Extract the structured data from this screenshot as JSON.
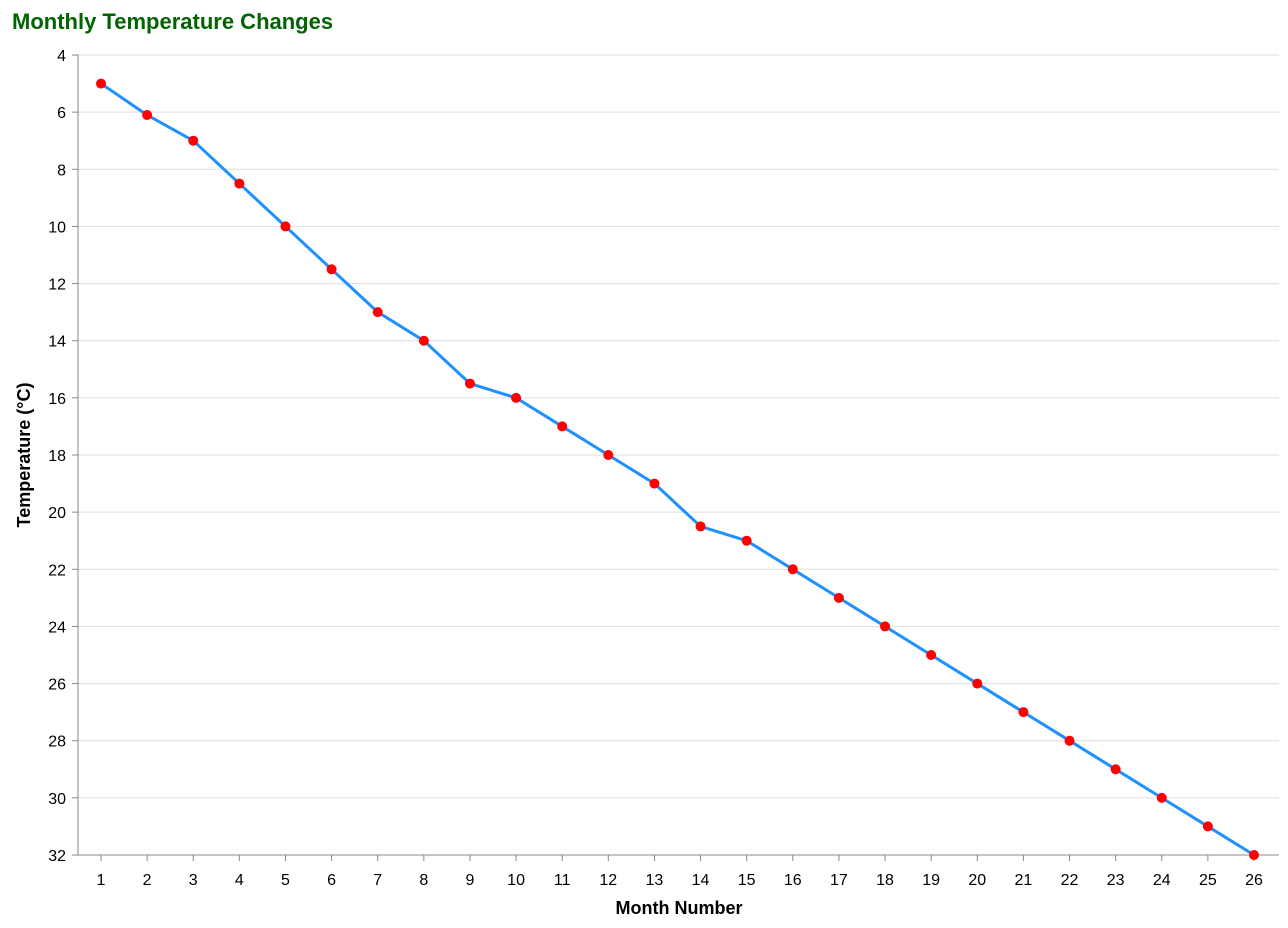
{
  "chart_data": {
    "type": "line",
    "title": "Monthly Temperature Changes",
    "xlabel": "Month Number",
    "ylabel": "Temperature (°C)",
    "x": [
      1,
      2,
      3,
      4,
      5,
      6,
      7,
      8,
      9,
      10,
      11,
      12,
      13,
      14,
      15,
      16,
      17,
      18,
      19,
      20,
      21,
      22,
      23,
      24,
      25,
      26
    ],
    "series": [
      {
        "values": [
          5,
          6.1,
          7,
          8.5,
          10,
          11.5,
          13,
          14,
          15.5,
          16,
          17,
          18,
          19,
          20.5,
          21,
          22,
          23,
          24,
          25,
          26,
          27,
          28,
          29,
          30,
          31,
          32
        ]
      }
    ],
    "xlim": [
      1,
      26
    ],
    "ylim": [
      4,
      32
    ],
    "y_axis_reversed": true,
    "y_ticks": [
      4,
      6,
      8,
      10,
      12,
      14,
      16,
      18,
      20,
      22,
      24,
      26,
      28,
      30,
      32
    ],
    "grid": "horizontal",
    "colors": {
      "title": "#006400",
      "line": "#1e90ff",
      "point": "#ff0000",
      "grid": "#dddddd",
      "axis": "#888888"
    }
  }
}
